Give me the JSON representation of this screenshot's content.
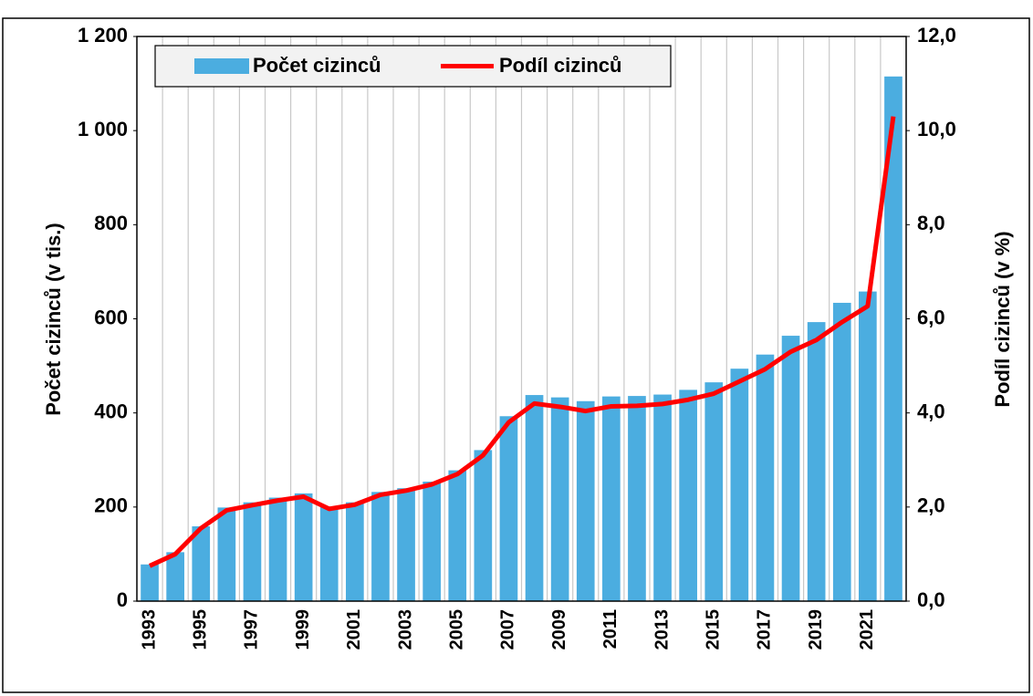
{
  "chart_data": {
    "type": "bar_line",
    "categories": [
      "1993",
      null,
      "1995",
      null,
      "1997",
      null,
      "1999",
      null,
      "2001",
      null,
      "2003",
      null,
      "2005",
      null,
      "2007",
      null,
      "2009",
      null,
      "2011",
      null,
      "2013",
      null,
      "2015",
      null,
      "2017",
      null,
      "2019",
      null,
      "2021",
      null
    ],
    "series": [
      {
        "name": "Počet cizinců",
        "type": "bar",
        "color": "#4bade0",
        "values": [
          78,
          104,
          159,
          199,
          210,
          220,
          229,
          201,
          210,
          232,
          240,
          254,
          278,
          321,
          393,
          438,
          433,
          425,
          435,
          436,
          439,
          449,
          465,
          494,
          524,
          564,
          593,
          634,
          658,
          1115
        ]
      },
      {
        "name": "Podíl cizinců",
        "type": "line",
        "axis": "y2",
        "color": "#ff0000",
        "values": [
          0.75,
          1.0,
          1.55,
          1.93,
          2.04,
          2.14,
          2.22,
          1.96,
          2.05,
          2.26,
          2.35,
          2.48,
          2.7,
          3.1,
          3.8,
          4.2,
          4.13,
          4.04,
          4.14,
          4.15,
          4.19,
          4.28,
          4.41,
          4.67,
          4.93,
          5.3,
          5.55,
          5.93,
          6.27,
          10.3
        ]
      }
    ],
    "ylabel": "Počet cizinců (v tis.)",
    "y2label": "Podíl cizinců (v %)",
    "ylim": [
      0,
      1200
    ],
    "yticks": [
      0,
      200,
      400,
      600,
      800,
      {
        "value": 1000,
        "label": "1 000"
      },
      {
        "value": 1200,
        "label": "1 200"
      }
    ],
    "y2lim": [
      0,
      12
    ],
    "y2ticks": [
      {
        "value": 0,
        "label": "0,0"
      },
      {
        "value": 2,
        "label": "2,0"
      },
      {
        "value": 4,
        "label": "4,0"
      },
      {
        "value": 6,
        "label": "6,0"
      },
      {
        "value": 8,
        "label": "8,0"
      },
      {
        "value": 10,
        "label": "10,0"
      },
      {
        "value": 12,
        "label": "12,0"
      }
    ],
    "grid": "x",
    "legend": "top-left"
  }
}
